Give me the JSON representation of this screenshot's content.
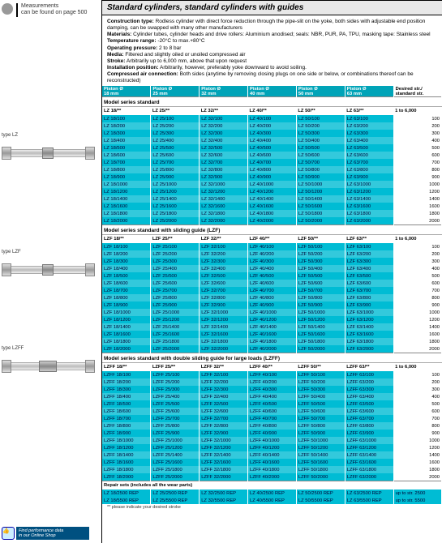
{
  "sidebar": {
    "measurements_line1": "Measurements",
    "measurements_line2": "can be found on page 500",
    "type_lz": "type LZ",
    "type_lzf": "type LZF",
    "type_lzff": "type LZFF",
    "tip_line1": "Find performance data",
    "tip_line2": "in our Online Shop"
  },
  "title": "Standard cylinders, standard cylinders with guides",
  "specs": {
    "construction_label": "Construction type:",
    "construction": "Rodless cylinder with direct force reduction through the pipe-slit on the yoke, both sides with adjustable end position damping, can be swapped with many other manufacturers",
    "materials_label": "Materials:",
    "materials": "Cylinder tubes, cylinder heads and drive rollers: Aluminium anodised; seals: NBR, PUR, PA, TPU, masking tape: Stainless steel",
    "temp_label": "Temperature range:",
    "temp": "-20°C to max.+80°C",
    "pressure_label": "Operating pressure:",
    "pressure": "2 to 8 bar",
    "media_label": "Media:",
    "media": "Filtered and slightly oiled or unoiled compressed air",
    "stroke_label": "Stroke:",
    "stroke": "Arbitrarily up to 6,000 mm, above that upon request",
    "install_label": "Installation position:",
    "install": "Arbitrarily, however, preferably yoke downward to avoid soiling.",
    "air_label": "Compressed air connection:",
    "air": "Both sides (anytime by removing closing plugs on one side or below, or combinations thereof can be reconstructed)"
  },
  "headers": {
    "piston": "Piston Ø",
    "d18": "18 mm",
    "d25": "25 mm",
    "d32": "32 mm",
    "d40": "40 mm",
    "d50": "50 mm",
    "d63": "63 mm",
    "desired": "Desired str./",
    "standard": "standard str."
  },
  "sections": {
    "lz_title": "Model series standard",
    "lz_cols": [
      "LZ 18/**",
      "LZ 25/**",
      "LZ 32/**",
      "LZ 40/**",
      "LZ 50/**",
      "LZ 63/**",
      "1 to 6,000"
    ],
    "lzf_title": "Model series standard with sliding guide (LZF)",
    "lzf_cols": [
      "LZF 18/**",
      "LZF 25/**",
      "LZF 32/**",
      "LZF 40/**",
      "LZF 50/**",
      "LZF 63/**",
      "1 to 6,000"
    ],
    "lzff_title": "Model series standard with double sliding guide for large loads (LZFF)",
    "lzff_cols": [
      "LZFF 18/**",
      "LZFF 25/**",
      "LZFF 32/**",
      "LZFF 40/**",
      "LZFF 50/**",
      "LZFF 63/**",
      "1 to 6,000"
    ],
    "repair_title": "Repair sets (includes all the wear parts)"
  },
  "strokes": [
    100,
    200,
    300,
    400,
    500,
    600,
    700,
    800,
    900,
    1000,
    1200,
    1400,
    1600,
    1800,
    2000
  ],
  "strokes_lzff": [
    100,
    200,
    300,
    400,
    500,
    600,
    700,
    800,
    900,
    1000,
    1200,
    1400,
    1600,
    1800,
    2000
  ],
  "repair_row": [
    "LZ 18/2500 REP",
    "LZ 25/2500 REP",
    "LZ 32/2500 REP",
    "LZ 40/2500 REP",
    "LZ 50/2500 REP",
    "LZ 63/2500 REP",
    "up to str. 2500"
  ],
  "repair_row2": [
    "LZ 18/5500 REP",
    "LZ 25/5500 REP",
    "LZ 32/5500 REP",
    "LZ 40/5500 REP",
    "LZ 50/5500 REP",
    "LZ 63/5500 REP",
    "up to str. 5500"
  ],
  "footnote": "** please indicate your desired stroke",
  "colors": {
    "header_bg": "#00a4b8",
    "cell_bg": "#00bcd4",
    "cell_bg_alt": "#33c9dc"
  }
}
